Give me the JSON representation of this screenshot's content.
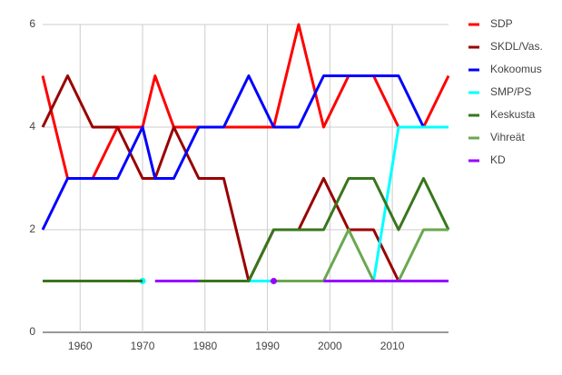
{
  "chart_data": {
    "type": "line",
    "x": [
      1954,
      1958,
      1962,
      1966,
      1970,
      1972,
      1975,
      1979,
      1983,
      1987,
      1991,
      1995,
      1999,
      2003,
      2007,
      2011,
      2015,
      2019
    ],
    "xlim": [
      1954,
      2019
    ],
    "xticks": [
      1960,
      1970,
      1980,
      1990,
      2000,
      2010
    ],
    "ylim": [
      0,
      6
    ],
    "yticks": [
      0,
      2,
      4,
      6
    ],
    "grid": true,
    "legend": "right",
    "series": [
      {
        "name": "SDP",
        "color": "#ff0000",
        "values": [
          5,
          3,
          3,
          4,
          4,
          5,
          4,
          4,
          4,
          4,
          4,
          6,
          4,
          5,
          5,
          4,
          4,
          5
        ]
      },
      {
        "name": "SKDL/Vas.",
        "color": "#990000",
        "values": [
          4,
          5,
          4,
          4,
          3,
          3,
          4,
          3,
          3,
          1,
          2,
          2,
          3,
          2,
          2,
          1,
          1,
          1
        ]
      },
      {
        "name": "Kokoomus",
        "color": "#0000ff",
        "values": [
          2,
          3,
          3,
          3,
          4,
          3,
          3,
          4,
          4,
          5,
          4,
          4,
          5,
          5,
          5,
          5,
          4,
          4
        ]
      },
      {
        "name": "SMP/PS",
        "color": "#00ffff",
        "values": [
          null,
          null,
          null,
          null,
          1,
          null,
          null,
          null,
          null,
          1,
          1,
          1,
          1,
          1,
          1,
          4,
          4,
          4
        ]
      },
      {
        "name": "Keskusta",
        "color": "#38761d",
        "values": [
          1,
          1,
          1,
          1,
          1,
          null,
          1,
          1,
          1,
          1,
          2,
          2,
          2,
          3,
          3,
          2,
          3,
          2
        ]
      },
      {
        "name": "Vihreät",
        "color": "#6aa84f",
        "values": [
          null,
          null,
          null,
          null,
          null,
          null,
          null,
          null,
          null,
          null,
          1,
          1,
          1,
          2,
          1,
          1,
          2,
          2
        ]
      },
      {
        "name": "KD",
        "color": "#9900ff",
        "values": [
          null,
          null,
          null,
          null,
          null,
          1,
          1,
          1,
          null,
          null,
          1,
          null,
          1,
          1,
          1,
          1,
          1,
          1
        ]
      }
    ]
  }
}
